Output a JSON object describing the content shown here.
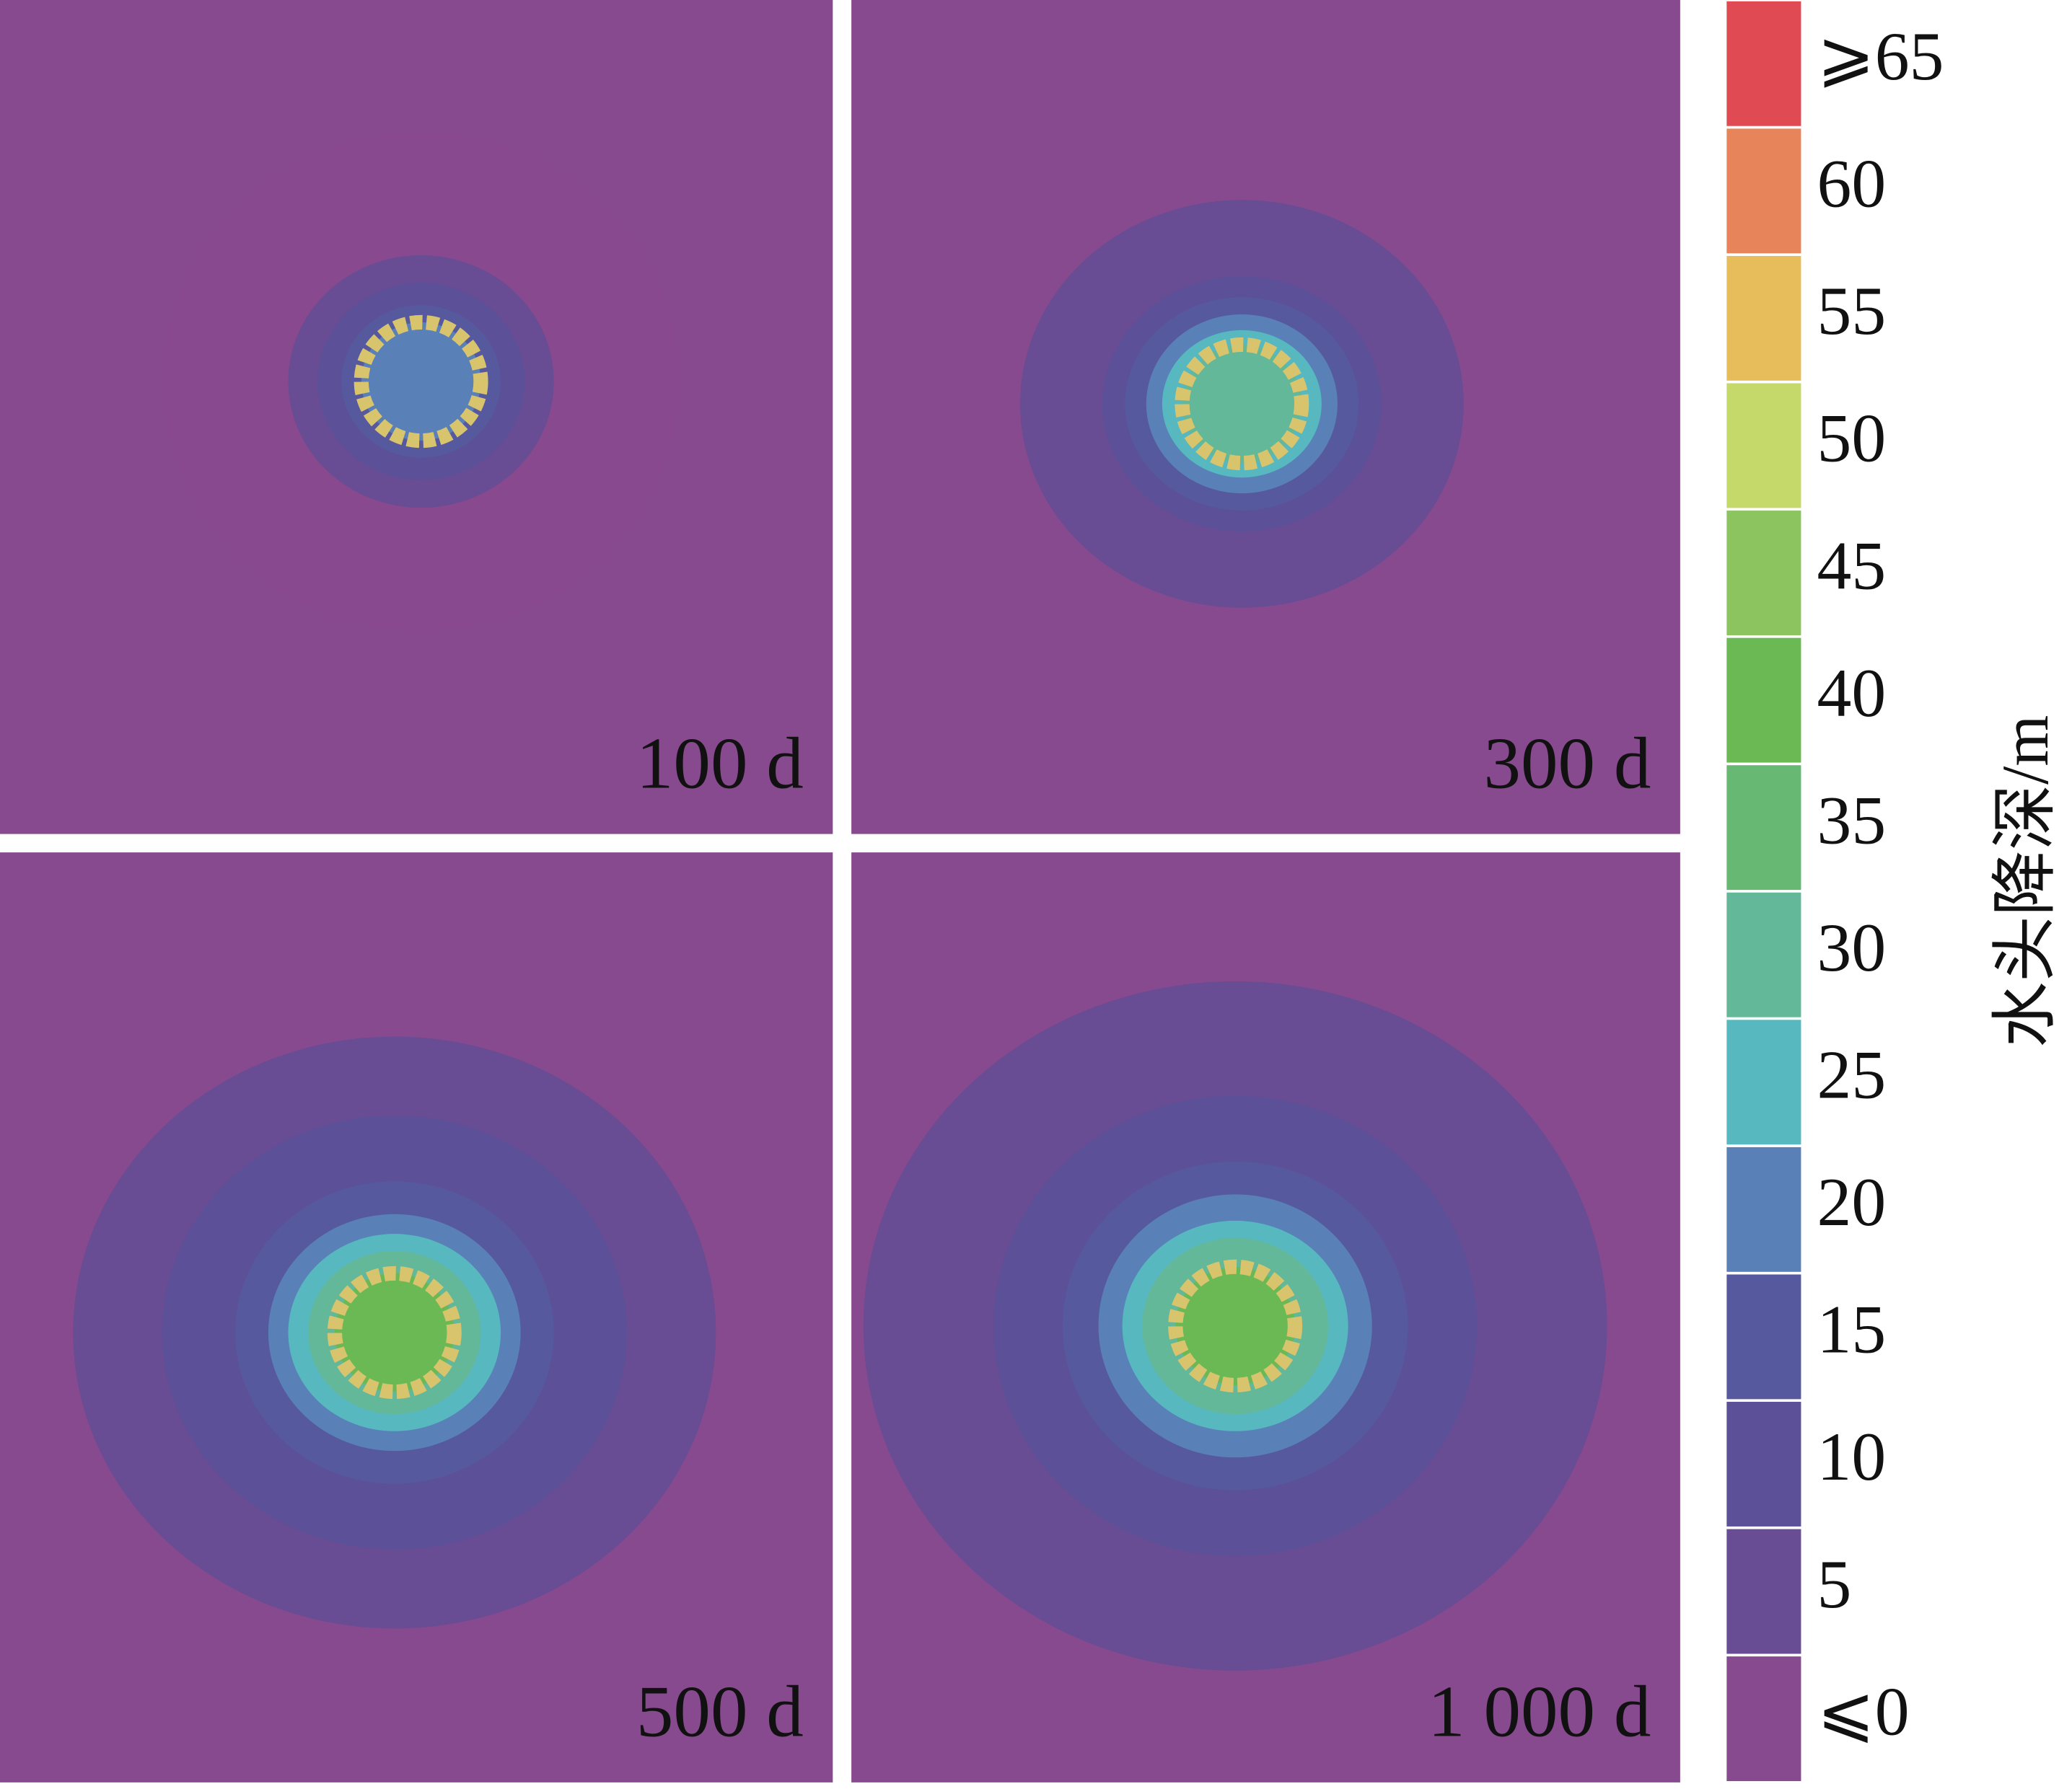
{
  "panels": [
    {
      "label": "100 d"
    },
    {
      "label": "300 d"
    },
    {
      "label": "500 d"
    },
    {
      "label": "1 000 d"
    }
  ],
  "colorbar": {
    "title": "水头降深/m",
    "levels": [
      {
        "value": 65,
        "label": "⩾65",
        "color": "#e04a52"
      },
      {
        "value": 60,
        "color": "#e8845a"
      },
      {
        "value": 55,
        "color": "#e6bd5a"
      },
      {
        "value": 50,
        "color": "#c5d96a"
      },
      {
        "value": 45,
        "color": "#8cc460"
      },
      {
        "value": 40,
        "color": "#6ab955"
      },
      {
        "value": 35,
        "color": "#66b872"
      },
      {
        "value": 30,
        "color": "#62b898"
      },
      {
        "value": 25,
        "color": "#58b8c0"
      },
      {
        "value": 20,
        "color": "#5a80b8"
      },
      {
        "value": 15,
        "color": "#56599e"
      },
      {
        "value": 10,
        "color": "#5c5098"
      },
      {
        "value": 5,
        "color": "#684c94"
      },
      {
        "value": 0,
        "label": "⩽0",
        "color": "#884a8e"
      }
    ]
  }
}
